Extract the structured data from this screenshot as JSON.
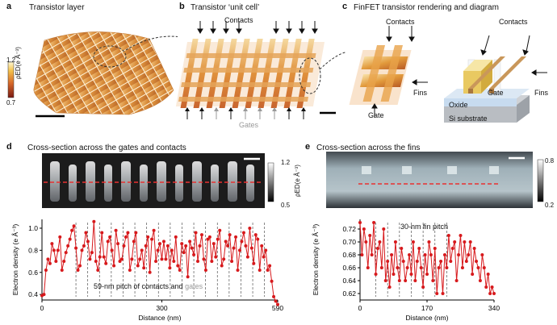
{
  "panels": {
    "a": {
      "letter": "a",
      "title": "Transistor layer",
      "scale_max": "1.2",
      "scale_min": "0.7",
      "scale_unit": "ρED(e Å⁻³)"
    },
    "b": {
      "letter": "b",
      "title": "Transistor ‘unit cell’",
      "contacts_label": "Contacts",
      "gates_label": "Gates"
    },
    "c": {
      "letter": "c",
      "title": "FinFET transistor rendering and diagram",
      "contacts_label_left": "Contacts",
      "contacts_label_right": "Contacts",
      "fins_label_left": "Fins",
      "gate_label_left": "Gate",
      "gate_label_right": "Gate",
      "fins_label_right": "Fins",
      "oxide_label": "Oxide",
      "substrate_label": "Si substrate"
    },
    "d": {
      "letter": "d",
      "title": "Cross-section across the gates and contacts",
      "scale_max": "1.2",
      "scale_min": "0.5",
      "scale_unit": "ρED(e Å⁻³)"
    },
    "e": {
      "letter": "e",
      "title": "Cross-section across the fins",
      "scale_max": "0.8",
      "scale_min": "0.2",
      "scale_unit": "ρED(e Å⁻³)"
    }
  },
  "colors": {
    "red": "#d7191c",
    "accent_orange": "#e8a33a"
  },
  "chart_data": [
    {
      "type": "line",
      "title": "",
      "annotation": "59-nm pitch of contacts and",
      "annotation_gray": "gates",
      "xlabel": "Distance (nm)",
      "ylabel": "Electron density (e Å⁻³)",
      "xlim": [
        0,
        590
      ],
      "ylim": [
        0.35,
        1.08
      ],
      "xticks": [
        "0",
        "300",
        "590"
      ],
      "yticks": [
        "0.4",
        "0.6",
        "0.8",
        "1.0"
      ],
      "x": [
        0,
        5,
        10,
        15,
        20,
        25,
        30,
        35,
        40,
        45,
        50,
        55,
        60,
        65,
        70,
        75,
        80,
        85,
        90,
        95,
        100,
        105,
        110,
        115,
        120,
        125,
        130,
        135,
        140,
        145,
        150,
        155,
        160,
        165,
        170,
        175,
        180,
        185,
        190,
        195,
        200,
        205,
        210,
        215,
        220,
        225,
        230,
        235,
        240,
        245,
        250,
        255,
        260,
        265,
        270,
        275,
        280,
        285,
        290,
        295,
        300,
        305,
        310,
        315,
        320,
        325,
        330,
        335,
        340,
        345,
        350,
        355,
        360,
        365,
        370,
        375,
        380,
        385,
        390,
        395,
        400,
        405,
        410,
        415,
        420,
        425,
        430,
        435,
        440,
        445,
        450,
        455,
        460,
        465,
        470,
        475,
        480,
        485,
        490,
        495,
        500,
        505,
        510,
        515,
        520,
        525,
        530,
        535,
        540,
        545,
        550,
        555,
        560,
        565,
        570,
        575,
        580,
        585,
        590
      ],
      "values": [
        0.39,
        0.4,
        0.62,
        0.72,
        0.68,
        0.86,
        0.8,
        0.7,
        0.8,
        0.92,
        0.62,
        0.7,
        0.78,
        0.84,
        0.9,
        0.98,
        1.02,
        0.82,
        0.62,
        0.66,
        0.8,
        0.84,
        0.96,
        0.88,
        0.72,
        0.78,
        1.06,
        0.7,
        0.62,
        0.74,
        0.96,
        0.74,
        0.68,
        0.88,
        0.92,
        0.8,
        0.66,
        0.98,
        0.86,
        0.7,
        0.72,
        0.84,
        0.92,
        0.96,
        0.62,
        0.72,
        0.88,
        0.96,
        0.66,
        0.72,
        0.8,
        0.64,
        0.84,
        0.92,
        0.6,
        0.9,
        0.98,
        0.7,
        0.8,
        0.86,
        0.72,
        0.88,
        0.72,
        0.84,
        0.64,
        0.8,
        0.7,
        0.92,
        0.66,
        0.62,
        0.86,
        0.78,
        0.84,
        0.56,
        0.88,
        0.82,
        0.76,
        0.96,
        0.7,
        0.84,
        0.94,
        0.72,
        0.62,
        0.9,
        0.92,
        0.7,
        0.86,
        0.74,
        0.9,
        0.98,
        0.66,
        0.72,
        0.88,
        0.84,
        0.94,
        0.7,
        0.82,
        0.92,
        0.62,
        0.8,
        0.88,
        0.96,
        0.84,
        0.74,
        1.0,
        0.82,
        0.68,
        0.94,
        0.9,
        0.62,
        0.84,
        0.74,
        0.8,
        0.62,
        0.66,
        0.52,
        0.38,
        0.34,
        0.31
      ]
    },
    {
      "type": "line",
      "title": "",
      "annotation": "30-nm fin pitch",
      "xlabel": "Distance (nm)",
      "ylabel": "Electron density (e Å⁻³)",
      "xlim": [
        0,
        340
      ],
      "ylim": [
        0.61,
        0.735
      ],
      "xticks": [
        "0",
        "170",
        "340"
      ],
      "yticks": [
        "0.62",
        "0.64",
        "0.66",
        "0.68",
        "0.70",
        "0.72"
      ],
      "x": [
        0,
        5,
        10,
        15,
        20,
        25,
        30,
        35,
        40,
        45,
        50,
        55,
        60,
        65,
        70,
        75,
        80,
        85,
        90,
        95,
        100,
        105,
        110,
        115,
        120,
        125,
        130,
        135,
        140,
        145,
        150,
        155,
        160,
        165,
        170,
        175,
        180,
        185,
        190,
        195,
        200,
        205,
        210,
        215,
        220,
        225,
        230,
        235,
        240,
        245,
        250,
        255,
        260,
        265,
        270,
        275,
        280,
        285,
        290,
        295,
        300,
        305,
        310,
        315,
        320,
        325,
        330,
        335,
        340
      ],
      "values": [
        0.73,
        0.68,
        0.72,
        0.7,
        0.66,
        0.71,
        0.68,
        0.73,
        0.65,
        0.69,
        0.7,
        0.66,
        0.72,
        0.64,
        0.67,
        0.63,
        0.68,
        0.65,
        0.7,
        0.66,
        0.64,
        0.69,
        0.67,
        0.64,
        0.66,
        0.68,
        0.65,
        0.7,
        0.64,
        0.67,
        0.69,
        0.66,
        0.63,
        0.68,
        0.65,
        0.7,
        0.68,
        0.64,
        0.69,
        0.62,
        0.66,
        0.67,
        0.62,
        0.68,
        0.66,
        0.71,
        0.67,
        0.69,
        0.7,
        0.64,
        0.68,
        0.71,
        0.66,
        0.7,
        0.67,
        0.68,
        0.7,
        0.65,
        0.69,
        0.67,
        0.66,
        0.64,
        0.68,
        0.66,
        0.63,
        0.65,
        0.62,
        0.63,
        0.62
      ]
    }
  ]
}
